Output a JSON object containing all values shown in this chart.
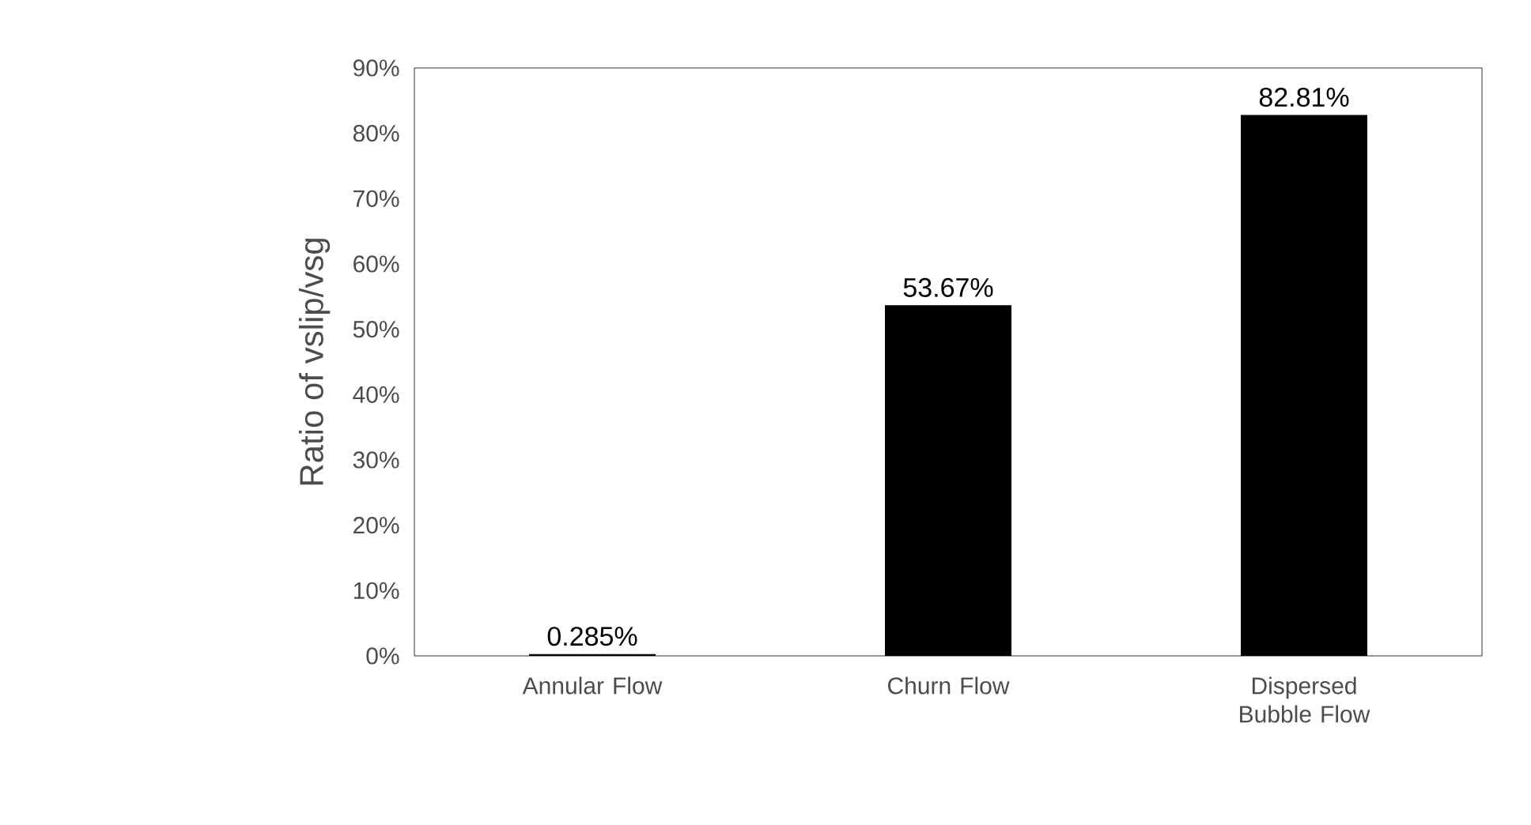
{
  "chart_data": {
    "type": "bar",
    "ylabel": "Ratio of vslip/vsg",
    "categories": [
      "Annular Flow",
      "Churn Flow",
      "Dispersed Bubble Flow"
    ],
    "values": [
      0.285,
      53.67,
      82.81
    ],
    "value_labels": [
      "0.285%",
      "53.67%",
      "82.81%"
    ],
    "color": "#000000",
    "ylim": [
      0,
      90
    ],
    "yticks": [
      {
        "value": 0,
        "label": "0%"
      },
      {
        "value": 10,
        "label": "10%"
      },
      {
        "value": 20,
        "label": "20%"
      },
      {
        "value": 30,
        "label": "30%"
      },
      {
        "value": 40,
        "label": "40%"
      },
      {
        "value": 50,
        "label": "50%"
      },
      {
        "value": 60,
        "label": "60%"
      },
      {
        "value": 70,
        "label": "70%"
      },
      {
        "value": 80,
        "label": "80%"
      },
      {
        "value": 90,
        "label": "90%"
      }
    ],
    "grid": false
  }
}
